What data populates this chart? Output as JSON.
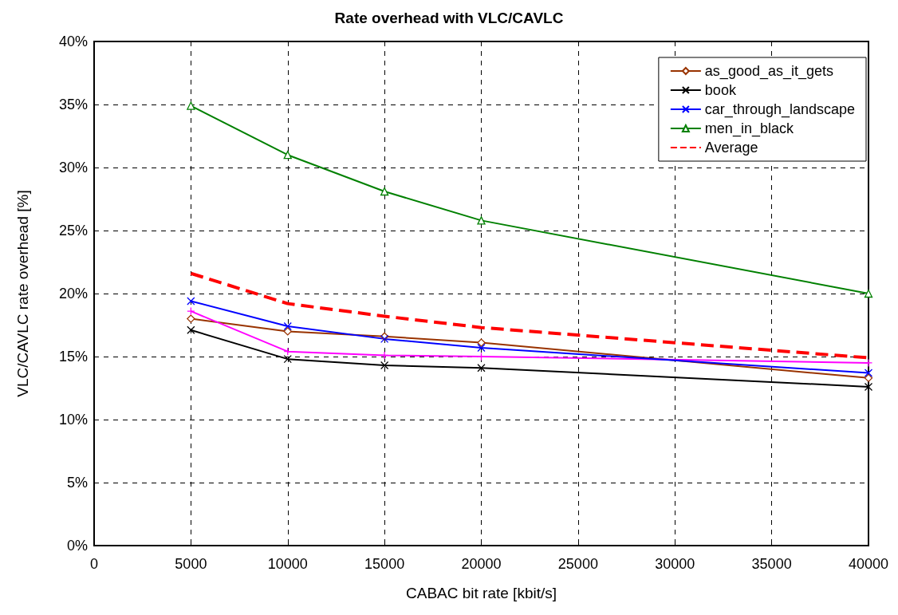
{
  "chart_data": {
    "type": "line",
    "title": "Rate overhead with VLC/CAVLC",
    "xlabel": "CABAC bit rate [kbit/s]",
    "ylabel": "VLC/CAVLC rate overhead [%]",
    "x": [
      5000,
      10000,
      15000,
      20000,
      40000
    ],
    "xlim": [
      0,
      40000
    ],
    "xticks": [
      0,
      5000,
      10000,
      15000,
      20000,
      25000,
      30000,
      35000,
      40000
    ],
    "ylim": [
      0,
      40
    ],
    "yticks": [
      {
        "value": 0,
        "label": "0%"
      },
      {
        "value": 5,
        "label": "5%"
      },
      {
        "value": 10,
        "label": "10%"
      },
      {
        "value": 15,
        "label": "15%"
      },
      {
        "value": 20,
        "label": "20%"
      },
      {
        "value": 25,
        "label": "25%"
      },
      {
        "value": 30,
        "label": "30%"
      },
      {
        "value": 35,
        "label": "35%"
      },
      {
        "value": 40,
        "label": "40%"
      }
    ],
    "grid": true,
    "legend": "top right",
    "series": [
      {
        "name": "as_good_as_it_gets",
        "color": "#993300",
        "marker": "diamond",
        "values": [
          18.0,
          17.0,
          16.6,
          16.1,
          13.3
        ]
      },
      {
        "name": "book",
        "color": "#000000",
        "marker": "cross",
        "values": [
          17.1,
          14.8,
          14.3,
          14.1,
          12.6
        ]
      },
      {
        "color": "#ff00ff",
        "marker": "cross",
        "values": [
          18.6,
          15.4,
          15.1,
          15.0,
          14.5
        ]
      },
      {
        "name": "car_through_landscape",
        "color": "#0000ff",
        "marker": "cross",
        "values": [
          19.4,
          17.4,
          16.4,
          15.7,
          13.7
        ]
      },
      {
        "name": "men_in_black",
        "color": "#008000",
        "marker": "triangle",
        "values": [
          34.9,
          31.0,
          28.1,
          25.8,
          20.0
        ]
      },
      {
        "name": "Average",
        "color": "#ff0000",
        "marker": "none",
        "line_style": "dashed",
        "values": [
          21.6,
          19.2,
          18.2,
          17.3,
          14.9
        ]
      }
    ]
  }
}
